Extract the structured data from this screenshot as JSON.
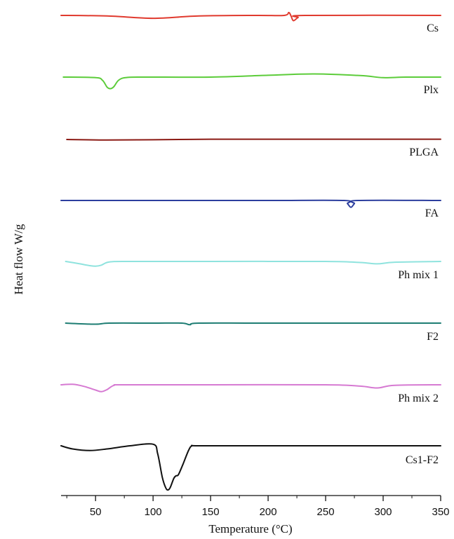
{
  "chart_data": {
    "type": "line",
    "xlabel": "Temperature (°C)",
    "ylabel": "Heat flow W/g",
    "xlim": [
      20,
      350
    ],
    "xticks": [
      50,
      100,
      150,
      200,
      250,
      300,
      350
    ],
    "series": [
      {
        "name": "Cs",
        "color": "#e03a2e",
        "x": [
          20,
          60,
          100,
          140,
          190,
          214,
          218,
          220,
          222,
          226,
          232,
          350
        ],
        "y": [
          0,
          -0.1,
          -0.55,
          -0.1,
          0,
          0,
          0.55,
          -0.15,
          -1.0,
          -0.4,
          0,
          0
        ]
      },
      {
        "name": "Plx",
        "color": "#5ccc3a",
        "x": [
          22,
          50,
          56,
          60,
          63,
          66,
          70,
          76,
          90,
          150,
          200,
          240,
          280,
          300,
          320,
          350
        ],
        "y": [
          0,
          -0.1,
          -0.6,
          -1.9,
          -2.2,
          -1.8,
          -0.6,
          -0.1,
          0,
          0,
          0.35,
          0.6,
          0.3,
          -0.1,
          0,
          0
        ]
      },
      {
        "name": "PLGA",
        "color": "#8b1a14",
        "x": [
          25,
          60,
          100,
          150,
          200,
          250,
          300,
          350
        ],
        "y": [
          0,
          -0.1,
          -0.05,
          0.05,
          0.05,
          0.05,
          0.05,
          0.05
        ]
      },
      {
        "name": "FA",
        "color": "#2c3e9e",
        "x": [
          20,
          100,
          200,
          266,
          269,
          272,
          275,
          278,
          350
        ],
        "y": [
          0,
          0,
          0,
          0,
          -0.6,
          -1.3,
          -0.6,
          0,
          0
        ]
      },
      {
        "name": "Ph mix 1",
        "color": "#8fe3de",
        "x": [
          24,
          35,
          45,
          50,
          55,
          62,
          80,
          150,
          250,
          280,
          295,
          310,
          350
        ],
        "y": [
          0,
          -0.4,
          -0.8,
          -0.9,
          -0.7,
          -0.1,
          0,
          0,
          0,
          -0.2,
          -0.45,
          -0.15,
          0
        ]
      },
      {
        "name": "F2",
        "color": "#1e7d73",
        "x": [
          24,
          50,
          62,
          100,
          125,
          132,
          140,
          200,
          350
        ],
        "y": [
          0,
          -0.2,
          0,
          0,
          0,
          -0.3,
          0,
          0,
          0
        ]
      },
      {
        "name": "Ph mix 2",
        "color": "#d67ad2",
        "x": [
          20,
          30,
          40,
          50,
          55,
          60,
          66,
          75,
          150,
          250,
          280,
          295,
          310,
          350
        ],
        "y": [
          0,
          0.1,
          -0.3,
          -1.0,
          -1.3,
          -0.9,
          -0.1,
          0,
          0,
          0,
          -0.25,
          -0.6,
          -0.1,
          0
        ]
      },
      {
        "name": "Cs1-F2",
        "color": "#111111",
        "x": [
          20,
          30,
          45,
          60,
          80,
          100,
          104,
          108,
          111,
          113,
          115,
          118,
          120,
          122,
          126,
          131,
          134,
          140,
          200,
          350
        ],
        "y": [
          0,
          -0.6,
          -0.9,
          -0.6,
          0,
          0.3,
          -1.5,
          -6.0,
          -8.0,
          -8.4,
          -7.9,
          -6.2,
          -5.7,
          -5.5,
          -3.5,
          -0.8,
          0,
          0,
          0,
          0
        ]
      }
    ]
  }
}
